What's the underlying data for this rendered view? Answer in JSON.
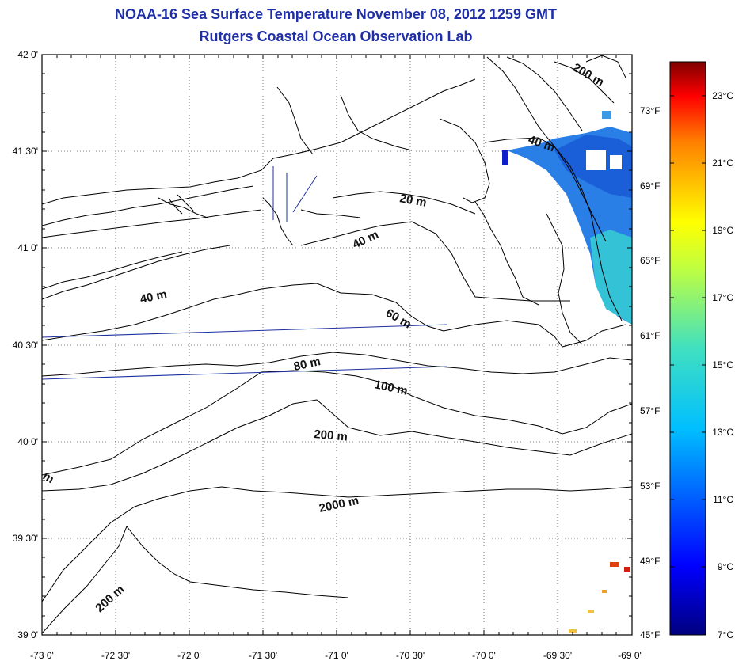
{
  "title": "NOAA-16 Sea Surface Temperature November 08, 2012 1259 GMT",
  "subtitle": "Rutgers Coastal Ocean Observation Lab",
  "axes": {
    "lon_labels": [
      "-73 0'",
      "-72 30'",
      "-72 0'",
      "-71 30'",
      "-71 0'",
      "-70 30'",
      "-70 0'",
      "-69 30'",
      "-69 0'"
    ],
    "lat_labels": [
      "42 0'",
      "41 30'",
      "41 0'",
      "40 30'",
      "40 0'",
      "39 30'",
      "39 0'"
    ]
  },
  "fahrenheit_labels": [
    "73°F",
    "69°F",
    "65°F",
    "61°F",
    "57°F",
    "53°F",
    "49°F",
    "45°F"
  ],
  "colorbar_labels": [
    "23°C",
    "21°C",
    "19°C",
    "17°C",
    "15°C",
    "13°C",
    "11°C",
    "9°C",
    "7°C"
  ],
  "contour_labels": {
    "c200_ne": "200 m",
    "c40_ne": "40 m",
    "c20": "20 m",
    "c40_mid": "40 m",
    "c40_west": "40 m",
    "c60": "60 m",
    "c80": "80 m",
    "c100": "100 m",
    "c200_mid": "200 m",
    "c2000": "2000 m",
    "c200_sw": "200 m",
    "edge_m": "m"
  },
  "colors": {
    "title": "#1f2fa8",
    "colorbar_top": "#7f0000",
    "colorbar_bottom": "#00007f",
    "sst_warm": "#1e6fe0",
    "sst_cool": "#34c6d8"
  }
}
